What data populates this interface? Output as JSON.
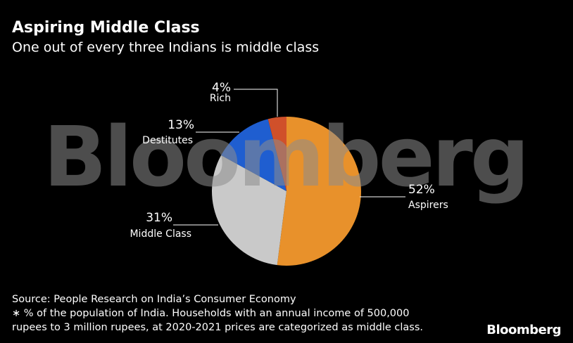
{
  "chart_data": {
    "type": "pie",
    "title": "Aspiring Middle Class",
    "subtitle": "One out of every three Indians is middle class",
    "categories": [
      "Aspirers",
      "Middle Class",
      "Destitutes",
      "Rich"
    ],
    "values": [
      52,
      31,
      13,
      4
    ],
    "value_labels": [
      "52%",
      "31%",
      "13%",
      "4%"
    ],
    "colors": [
      "#e8912b",
      "#c9c9c9",
      "#1f5ed0",
      "#d0502a"
    ],
    "watermark": "Bloomberg",
    "source": "Source: People Research on India’s Consumer Economy",
    "footnote": [
      "∗ % of the population of India. Households with an annual income of 500,000",
      "rupees to 3 million rupees, at 2020-2021 prices are categorized as middle class."
    ],
    "logo": "Bloomberg"
  }
}
